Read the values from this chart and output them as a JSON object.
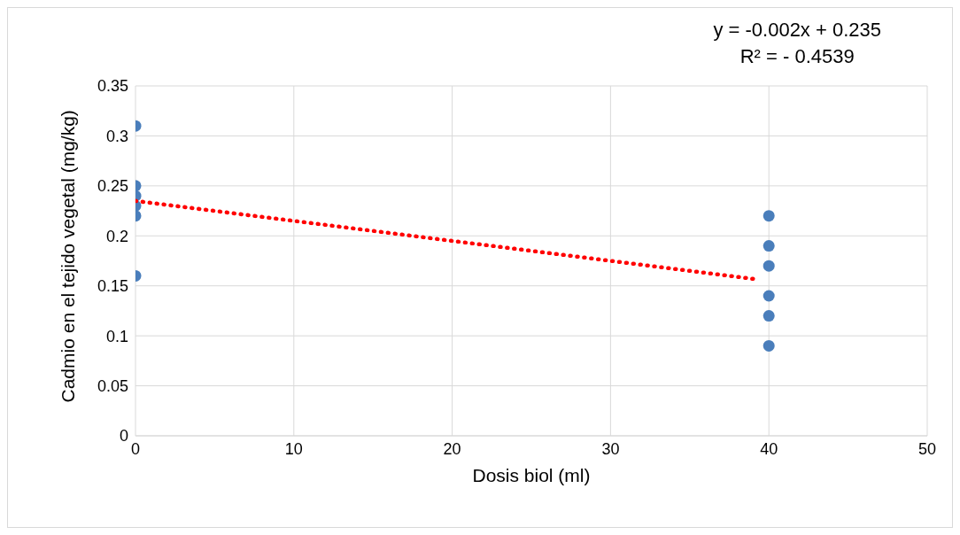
{
  "chart_data": {
    "type": "scatter",
    "xlabel": "Dosis biol (ml)",
    "ylabel": "Cadmio en el tejido vegetal (mg/kg)",
    "annotations": [
      "y = -0.002x + 0.235",
      "R² = - 0.4539"
    ],
    "series": [
      {
        "type": "scatter",
        "color": "#4a7ebb",
        "marker": "circle",
        "x": [
          0,
          0,
          0,
          0,
          0,
          0,
          40,
          40,
          40,
          40,
          40,
          40
        ],
        "values": [
          0.31,
          0.25,
          0.24,
          0.23,
          0.22,
          0.16,
          0.22,
          0.19,
          0.17,
          0.14,
          0.12,
          0.09
        ]
      },
      {
        "type": "line",
        "color": "#ff0000",
        "line_style": "dotted",
        "marker": "none",
        "x": [
          0,
          39
        ],
        "values": [
          0.235,
          0.157
        ]
      }
    ],
    "xlim": [
      0,
      50
    ],
    "xticks": [
      0,
      10,
      20,
      30,
      40,
      50
    ],
    "ylim": [
      0,
      0.35
    ],
    "yticks": [
      0,
      0.05,
      0.1,
      0.15,
      0.2,
      0.25,
      0.3,
      0.35
    ],
    "grid": true
  }
}
